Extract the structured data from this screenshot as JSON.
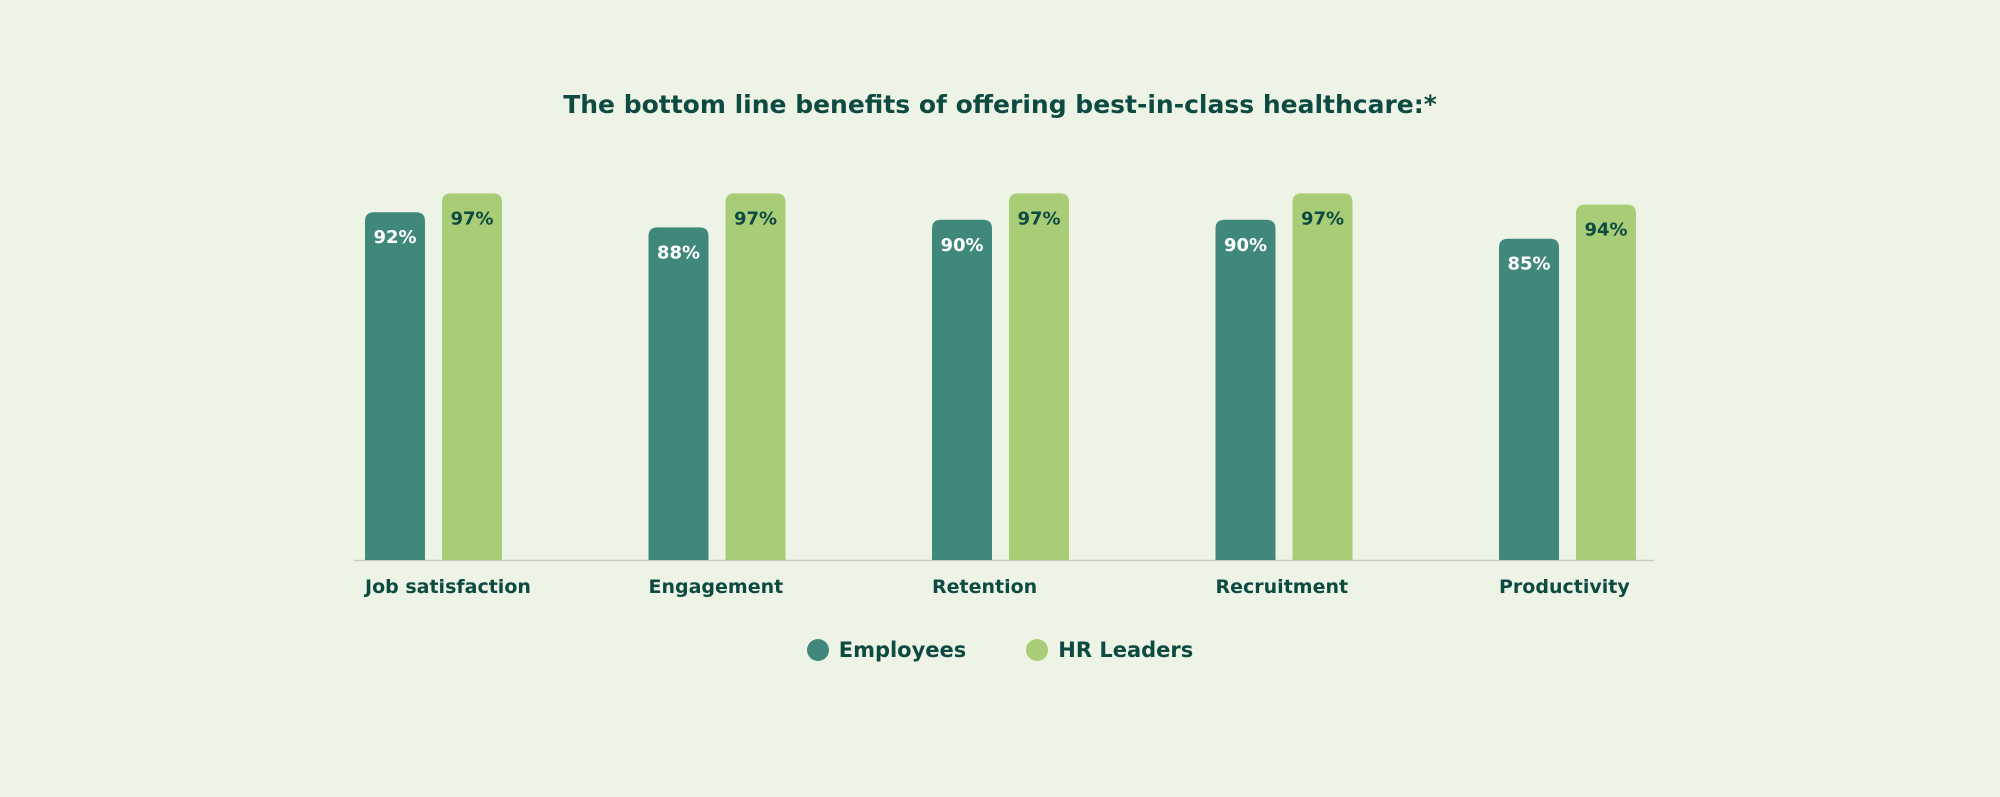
{
  "colors": {
    "background": "#eef4e5",
    "employees": "#40887c",
    "hr_leaders": "#a9cc76",
    "text_dark": "#0d4a41",
    "axis": "#c5cfc0"
  },
  "chart_data": {
    "type": "bar",
    "title": "The bottom line benefits of offering best-in-class healthcare:*",
    "categories": [
      "Job satisfaction",
      "Engagement",
      "Retention",
      "Recruitment",
      "Productivity"
    ],
    "series": [
      {
        "name": "Employees",
        "values": [
          92,
          88,
          90,
          90,
          85
        ]
      },
      {
        "name": "HR Leaders",
        "values": [
          97,
          97,
          97,
          97,
          94
        ]
      }
    ],
    "value_labels": [
      [
        "92%",
        "88%",
        "90%",
        "90%",
        "85%"
      ],
      [
        "97%",
        "97%",
        "97%",
        "97%",
        "94%"
      ]
    ],
    "ylim": [
      0,
      100
    ],
    "grid": false,
    "legend_position": "bottom-center"
  },
  "legend": {
    "employees_label": "Employees",
    "hr_leaders_label": "HR Leaders"
  }
}
